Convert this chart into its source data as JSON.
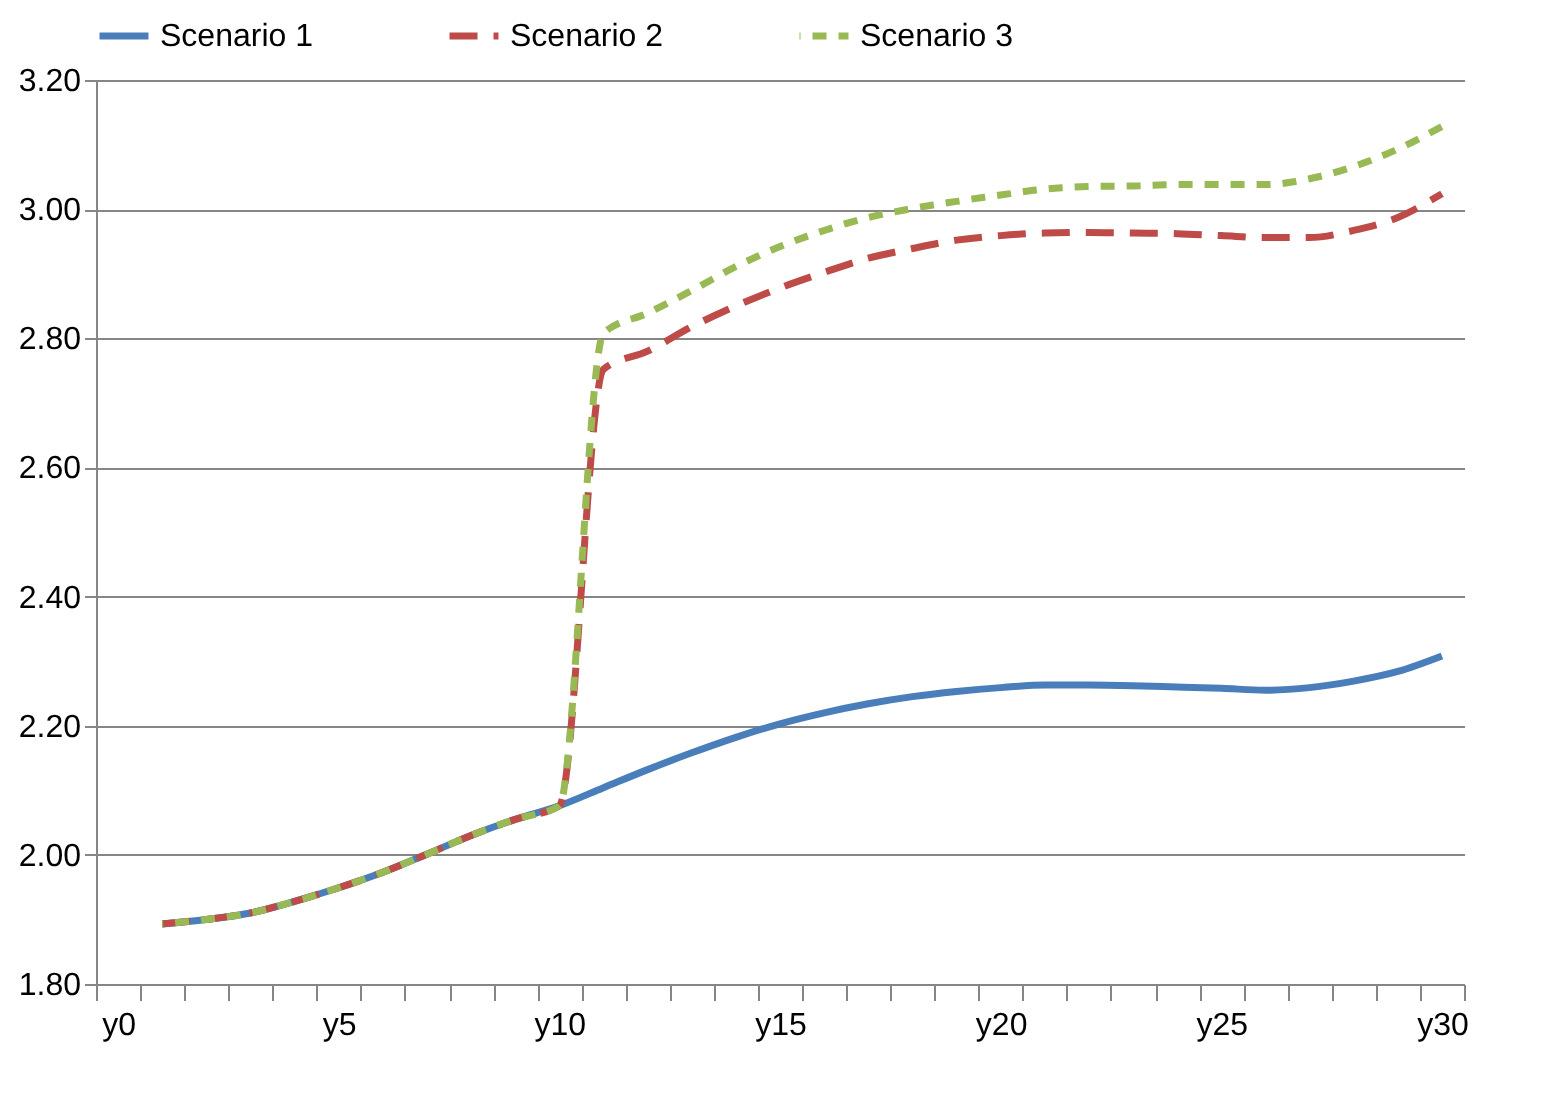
{
  "chart_data": {
    "type": "line",
    "categories": [
      "y0",
      null,
      null,
      null,
      null,
      "y5",
      null,
      null,
      null,
      null,
      "y10",
      null,
      null,
      null,
      null,
      "y15",
      null,
      null,
      null,
      null,
      "y20",
      null,
      null,
      null,
      null,
      "y25",
      null,
      null,
      null,
      null,
      "y30"
    ],
    "series": [
      {
        "name": "Scenario 1",
        "color": "#4a7ebb",
        "line_style": "solid",
        "values": [
          null,
          1.893,
          1.9,
          1.91,
          1.928,
          1.949,
          1.973,
          2.001,
          2.03,
          2.055,
          2.076,
          2.104,
          2.132,
          2.158,
          2.182,
          2.203,
          2.22,
          2.234,
          2.245,
          2.253,
          2.259,
          2.263,
          2.263,
          2.262,
          2.26,
          2.258,
          2.255,
          2.259,
          2.269,
          2.284,
          2.308
        ]
      },
      {
        "name": "Scenario 2",
        "color": "#be4b48",
        "line_style": "dashed",
        "values": [
          null,
          1.893,
          1.9,
          1.91,
          1.928,
          1.949,
          1.973,
          2.001,
          2.03,
          2.055,
          2.076,
          2.752,
          2.78,
          2.818,
          2.85,
          2.878,
          2.902,
          2.924,
          2.939,
          2.952,
          2.959,
          2.963,
          2.964,
          2.963,
          2.962,
          2.959,
          2.956,
          2.956,
          2.967,
          2.987,
          3.024
        ]
      },
      {
        "name": "Scenario 3",
        "color": "#98b954",
        "line_style": "dashed",
        "values": [
          null,
          1.893,
          1.9,
          1.91,
          1.928,
          1.949,
          1.973,
          2.001,
          2.03,
          2.055,
          2.076,
          2.808,
          2.839,
          2.874,
          2.911,
          2.942,
          2.967,
          2.987,
          3.001,
          3.012,
          3.022,
          3.031,
          3.035,
          3.036,
          3.038,
          3.038,
          3.038,
          3.047,
          3.066,
          3.093,
          3.128
        ]
      }
    ],
    "ylim": [
      1.8,
      3.2
    ],
    "yticks": [
      {
        "value": 1.8,
        "label": "1.80"
      },
      {
        "value": 2.0,
        "label": "2.00"
      },
      {
        "value": 2.2,
        "label": "2.20"
      },
      {
        "value": 2.4,
        "label": "2.40"
      },
      {
        "value": 2.6,
        "label": "2.60"
      },
      {
        "value": 2.8,
        "label": "2.80"
      },
      {
        "value": 3.0,
        "label": "3.00"
      },
      {
        "value": 3.2,
        "label": "3.20"
      }
    ],
    "grid": "y",
    "legend": "top"
  }
}
